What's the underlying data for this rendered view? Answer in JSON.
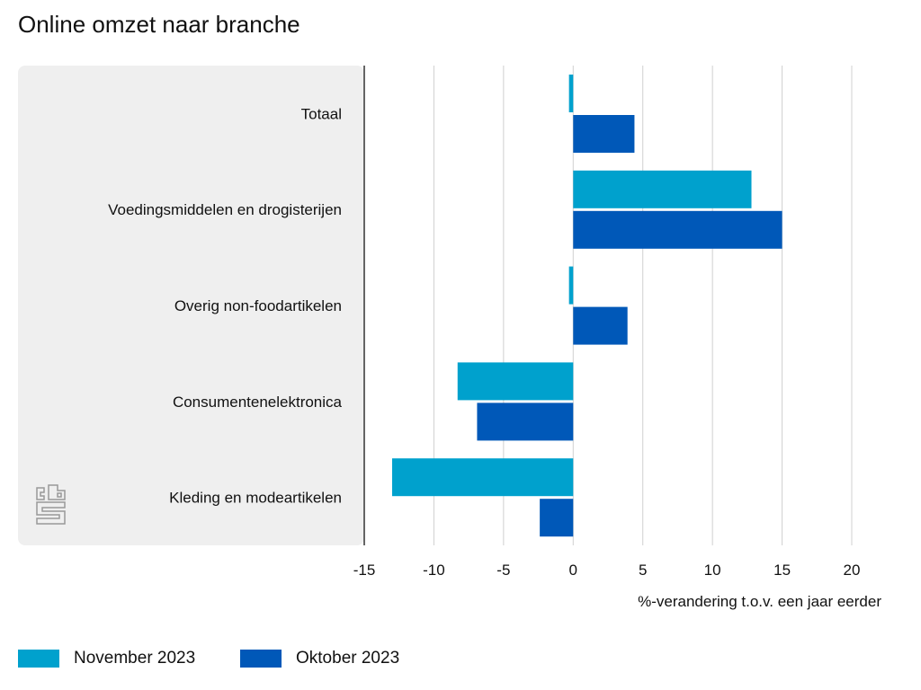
{
  "chart_data": {
    "type": "bar",
    "orientation": "horizontal",
    "title": "Online omzet naar branche",
    "xlabel": "%-verandering t.o.v. een jaar eerder",
    "ylabel": "",
    "xlim": [
      -15,
      20
    ],
    "xticks": [
      -15,
      -10,
      -5,
      0,
      5,
      10,
      15,
      20
    ],
    "grid": true,
    "legend_position": "bottom-left",
    "categories": [
      "Totaal",
      "Voedingsmiddelen en drogisterijen",
      "Overig non-foodartikelen",
      "Consumentenelektronica",
      "Kleding en modeartikelen"
    ],
    "series": [
      {
        "name": "November 2023",
        "color": "#00a1cd",
        "values": [
          -0.3,
          12.8,
          -0.3,
          -8.3,
          -13.0
        ]
      },
      {
        "name": "Oktober 2023",
        "color": "#0058b8",
        "values": [
          4.4,
          15.0,
          3.9,
          -6.9,
          -2.4
        ]
      }
    ]
  }
}
